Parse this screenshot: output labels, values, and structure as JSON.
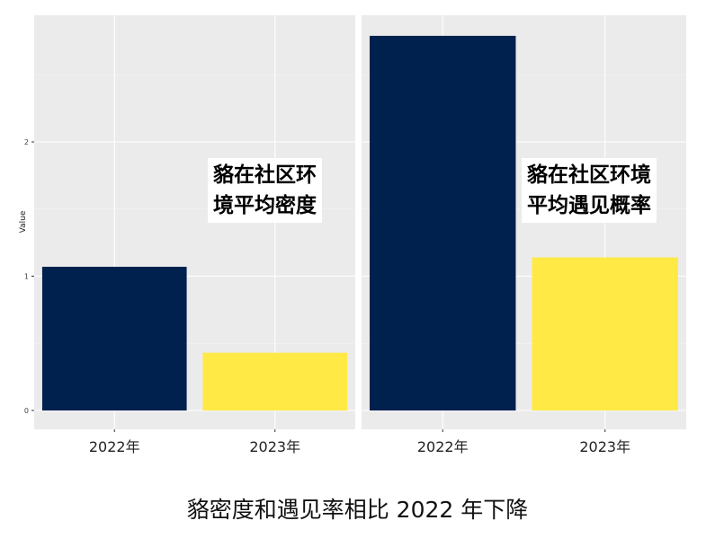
{
  "chart_data": [
    {
      "type": "bar",
      "panel": "left",
      "categories": [
        "2022年",
        "2023年"
      ],
      "values": [
        1.07,
        0.43
      ],
      "colors": [
        "#00204D",
        "#FFE945"
      ],
      "ylabel": "Value",
      "yticks": [
        0,
        1,
        2
      ],
      "ylim": [
        -0.15,
        2.95
      ],
      "annotation": [
        "貉在社区环",
        "境平均密度"
      ],
      "grid": true
    },
    {
      "type": "bar",
      "panel": "right",
      "categories": [
        "2022年",
        "2023年"
      ],
      "values": [
        2.79,
        1.14
      ],
      "colors": [
        "#00204D",
        "#FFE945"
      ],
      "ylim": [
        -0.15,
        2.95
      ],
      "annotation": [
        "貉在社区环境",
        "平均遇见概率"
      ],
      "grid": true
    }
  ],
  "caption": "貉密度和遇见率相比 2022 年下降"
}
